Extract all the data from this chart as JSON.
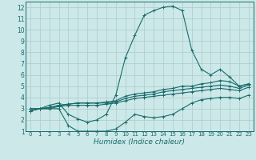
{
  "xlabel": "Humidex (Indice chaleur)",
  "bg_color": "#cce8e8",
  "grid_color": "#aacccc",
  "line_color": "#1a6b6b",
  "xlim": [
    -0.5,
    23.5
  ],
  "ylim": [
    1,
    12.5
  ],
  "xticks": [
    0,
    1,
    2,
    3,
    4,
    5,
    6,
    7,
    8,
    9,
    10,
    11,
    12,
    13,
    14,
    15,
    16,
    17,
    18,
    19,
    20,
    21,
    22,
    23
  ],
  "yticks": [
    1,
    2,
    3,
    4,
    5,
    6,
    7,
    8,
    9,
    10,
    11,
    12
  ],
  "series": {
    "main": {
      "x": [
        0,
        1,
        2,
        3,
        4,
        5,
        6,
        7,
        8,
        9,
        10,
        11,
        12,
        13,
        14,
        15,
        16,
        17,
        18,
        19,
        20,
        21,
        22,
        23
      ],
      "y": [
        3,
        3,
        3.3,
        3.5,
        2.5,
        2.1,
        1.8,
        2.0,
        2.5,
        4.2,
        7.5,
        9.5,
        11.3,
        11.7,
        12.0,
        12.1,
        11.7,
        8.2,
        6.5,
        6.0,
        6.5,
        5.8,
        5.0,
        5.2
      ]
    },
    "line2": {
      "x": [
        0,
        1,
        2,
        3,
        4,
        5,
        6,
        7,
        8,
        9,
        10,
        11,
        12,
        13,
        14,
        15,
        16,
        17,
        18,
        19,
        20,
        21,
        22,
        23
      ],
      "y": [
        2.8,
        3.0,
        3.1,
        3.3,
        3.4,
        3.5,
        3.5,
        3.5,
        3.6,
        3.7,
        4.1,
        4.3,
        4.4,
        4.5,
        4.7,
        4.8,
        5.0,
        5.0,
        5.2,
        5.3,
        5.5,
        5.4,
        5.0,
        5.2
      ]
    },
    "line3": {
      "x": [
        0,
        1,
        2,
        3,
        4,
        5,
        6,
        7,
        8,
        9,
        10,
        11,
        12,
        13,
        14,
        15,
        16,
        17,
        18,
        19,
        20,
        21,
        22,
        23
      ],
      "y": [
        2.8,
        3.0,
        3.1,
        3.3,
        3.4,
        3.5,
        3.5,
        3.5,
        3.5,
        3.6,
        3.9,
        4.1,
        4.2,
        4.3,
        4.5,
        4.6,
        4.7,
        4.8,
        4.9,
        5.0,
        5.1,
        5.0,
        4.8,
        5.1
      ]
    },
    "line4": {
      "x": [
        0,
        1,
        2,
        3,
        4,
        5,
        6,
        7,
        8,
        9,
        10,
        11,
        12,
        13,
        14,
        15,
        16,
        17,
        18,
        19,
        20,
        21,
        22,
        23
      ],
      "y": [
        2.8,
        3.0,
        3.0,
        3.2,
        3.3,
        3.3,
        3.3,
        3.3,
        3.4,
        3.5,
        3.7,
        3.9,
        4.0,
        4.1,
        4.2,
        4.3,
        4.4,
        4.5,
        4.6,
        4.7,
        4.8,
        4.7,
        4.6,
        4.9
      ]
    },
    "low": {
      "x": [
        0,
        1,
        2,
        3,
        4,
        5,
        6,
        7,
        8,
        9,
        10,
        11,
        12,
        13,
        14,
        15,
        16,
        17,
        18,
        19,
        20,
        21,
        22,
        23
      ],
      "y": [
        3.0,
        3.0,
        3.0,
        3.0,
        1.5,
        1.0,
        1.0,
        1.0,
        1.0,
        1.2,
        1.8,
        2.5,
        2.3,
        2.2,
        2.3,
        2.5,
        3.0,
        3.5,
        3.8,
        3.9,
        4.0,
        4.0,
        3.9,
        4.2
      ]
    }
  }
}
